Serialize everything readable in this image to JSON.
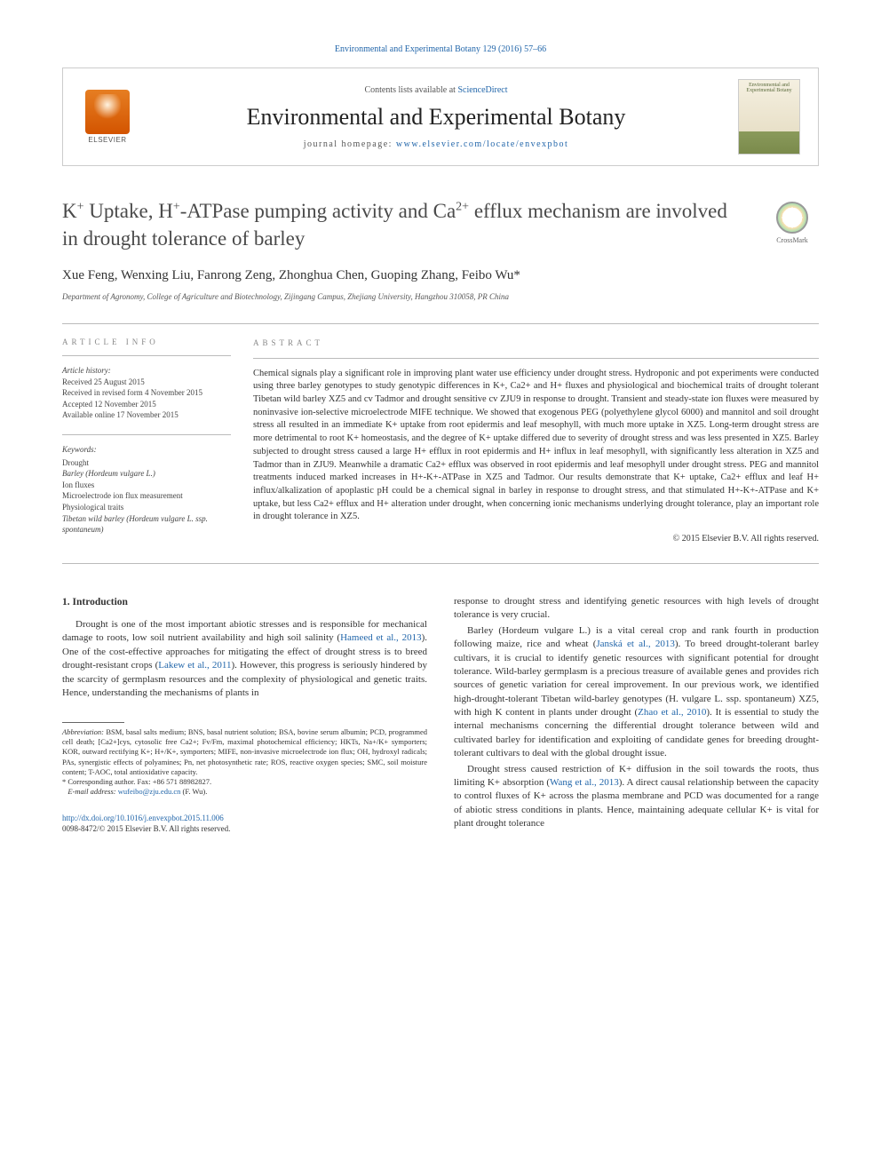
{
  "header_citation": "Environmental and Experimental Botany 129 (2016) 57–66",
  "banner": {
    "contents_text": "Contents lists available at ",
    "contents_link": "ScienceDirect",
    "journal_title": "Environmental and Experimental Botany",
    "homepage_label": "journal homepage: ",
    "homepage_url": "www.elsevier.com/locate/envexpbot",
    "elsevier_label": "ELSEVIER",
    "cover_text": "Environmental and Experimental Botany"
  },
  "crossmark_label": "CrossMark",
  "title_html": "K<sup>+</sup> Uptake, H<sup>+</sup>-ATPase pumping activity and Ca<sup>2+</sup> efflux mechanism are involved in drought tolerance of barley",
  "authors": "Xue Feng, Wenxing Liu, Fanrong Zeng, Zhonghua Chen, Guoping Zhang, Feibo Wu*",
  "affiliation": "Department of Agronomy, College of Agriculture and Biotechnology, Zijingang Campus, Zhejiang University, Hangzhou 310058, PR China",
  "info_label": "ARTICLE INFO",
  "abstract_label": "ABSTRACT",
  "history": {
    "label": "Article history:",
    "received": "Received 25 August 2015",
    "revised": "Received in revised form 4 November 2015",
    "accepted": "Accepted 12 November 2015",
    "online": "Available online 17 November 2015"
  },
  "keywords": {
    "label": "Keywords:",
    "items": [
      "Drought",
      "Barley (Hordeum vulgare L.)",
      "Ion fluxes",
      "Microelectrode ion flux measurement",
      "Physiological traits",
      "Tibetan wild barley (Hordeum vulgare L. ssp. spontaneum)"
    ]
  },
  "abstract_text": "Chemical signals play a significant role in improving plant water use efficiency under drought stress. Hydroponic and pot experiments were conducted using three barley genotypes to study genotypic differences in K+, Ca2+ and H+ fluxes and physiological and biochemical traits of drought tolerant Tibetan wild barley XZ5 and cv Tadmor and drought sensitive cv ZJU9 in response to drought. Transient and steady-state ion fluxes were measured by noninvasive ion-selective microelectrode MIFE technique. We showed that exogenous PEG (polyethylene glycol 6000) and mannitol and soil drought stress all resulted in an immediate K+ uptake from root epidermis and leaf mesophyll, with much more uptake in XZ5. Long-term drought stress are more detrimental to root K+ homeostasis, and the degree of K+ uptake differed due to severity of drought stress and was less presented in XZ5. Barley subjected to drought stress caused a large H+ efflux in root epidermis and H+ influx in leaf mesophyll, with significantly less alteration in XZ5 and Tadmor than in ZJU9. Meanwhile a dramatic Ca2+ efflux was observed in root epidermis and leaf mesophyll under drought stress. PEG and mannitol treatments induced marked increases in H+-K+-ATPase in XZ5 and Tadmor. Our results demonstrate that K+ uptake, Ca2+ efflux and leaf H+ influx/alkalization of apoplastic pH could be a chemical signal in barley in response to drought stress, and that stimulated H+-K+-ATPase and K+ uptake, but less Ca2+ efflux and H+ alteration under drought, when concerning ionic mechanisms underlying drought tolerance, play an important role in drought tolerance in XZ5.",
  "copyright": "© 2015 Elsevier B.V. All rights reserved.",
  "intro_heading": "1. Introduction",
  "col1": {
    "p1_a": "Drought is one of the most important abiotic stresses and is responsible for mechanical damage to roots, low soil nutrient availability and high soil salinity (",
    "p1_cite1": "Hameed et al., 2013",
    "p1_b": "). One of the cost-effective approaches for mitigating the effect of drought stress is to breed drought-resistant crops (",
    "p1_cite2": "Lakew et al., 2011",
    "p1_c": "). However, this progress is seriously hindered by the scarcity of germplasm resources and the complexity of physiological and genetic traits. Hence, understanding the mechanisms of plants in"
  },
  "col2": {
    "p0": "response to drought stress and identifying genetic resources with high levels of drought tolerance is very crucial.",
    "p1_a": "Barley (Hordeum vulgare L.) is a vital cereal crop and rank fourth in production following maize, rice and wheat (",
    "p1_cite1": "Janská et al., 2013",
    "p1_b": "). To breed drought-tolerant barley cultivars, it is crucial to identify genetic resources with significant potential for drought tolerance. Wild-barley germplasm is a precious treasure of available genes and provides rich sources of genetic variation for cereal improvement. In our previous work, we identified high-drought-tolerant Tibetan wild-barley genotypes (H. vulgare L. ssp. spontaneum) XZ5, with high K content in plants under drought (",
    "p1_cite2": "Zhao et al., 2010",
    "p1_c": "). It is essential to study the internal mechanisms concerning the differential drought tolerance between wild and cultivated barley for identification and exploiting of candidate genes for breeding drought-tolerant cultivars to deal with the global drought issue.",
    "p2_a": "Drought stress caused restriction of K+ diffusion in the soil towards the roots, thus limiting K+ absorption (",
    "p2_cite1": "Wang et al., 2013",
    "p2_b": "). A direct causal relationship between the capacity to control fluxes of K+ across the plasma membrane and PCD was documented for a range of abiotic stress conditions in plants. Hence, maintaining adequate cellular K+ is vital for plant drought tolerance"
  },
  "footnotes": {
    "abbrev_label": "Abbreviation:",
    "abbrev_text": " BSM, basal salts medium; BNS, basal nutrient solution; BSA, bovine serum albumin; PCD, programmed cell death; [Ca2+]cys, cytosolic free Ca2+; Fv/Fm, maximal photochemical efficiency; HKTs, Na+/K+ symporters; KOR, outward rectifying K+; H+/K+, symporters; MIFE, non-invasive microelectrode ion flux; OH, hydroxyl radicals; PAs, synergistic effects of polyamines; Pn, net photosynthetic rate; ROS, reactive oxygen species; SMC, soil moisture content; T-AOC, total antioxidative capacity.",
    "corr_text": "* Corresponding author. Fax: +86 571 88982827.",
    "email_label": "E-mail address: ",
    "email": "wufeibo@zju.edu.cn",
    "email_suffix": " (F. Wu)."
  },
  "doi": {
    "url": "http://dx.doi.org/10.1016/j.envexpbot.2015.11.006",
    "issn_line": "0098-8472/© 2015 Elsevier B.V. All rights reserved."
  }
}
